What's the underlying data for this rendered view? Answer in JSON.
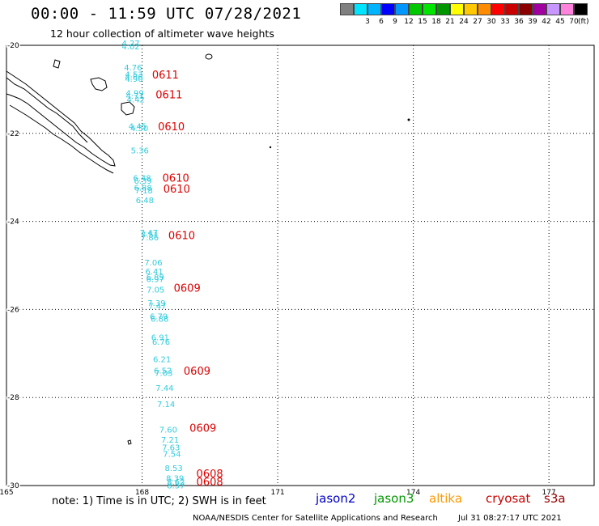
{
  "header": {
    "title": "00:00 - 11:59 UTC 07/28/2021",
    "subtitle": "12 hour collection of altimeter wave heights"
  },
  "legend": {
    "unit": "(ft)",
    "items": [
      {
        "label": "",
        "color": "#808080"
      },
      {
        "label": "3",
        "color": "#00e5ff"
      },
      {
        "label": "6",
        "color": "#00b4ff"
      },
      {
        "label": "9",
        "color": "#0000ff"
      },
      {
        "label": "12",
        "color": "#0096ff"
      },
      {
        "label": "15",
        "color": "#00c800"
      },
      {
        "label": "18",
        "color": "#00e600"
      },
      {
        "label": "21",
        "color": "#009600"
      },
      {
        "label": "24",
        "color": "#ffff00"
      },
      {
        "label": "27",
        "color": "#ffc800"
      },
      {
        "label": "30",
        "color": "#ff8c00"
      },
      {
        "label": "33",
        "color": "#ff0000"
      },
      {
        "label": "36",
        "color": "#c80000"
      },
      {
        "label": "39",
        "color": "#8b0000"
      },
      {
        "label": "42",
        "color": "#a000a0"
      },
      {
        "label": "45",
        "color": "#c896ff"
      },
      {
        "label": "70",
        "color": "#ff82dc"
      },
      {
        "label": "",
        "color": "#000000"
      }
    ]
  },
  "map": {
    "lon_range": [
      165,
      178
    ],
    "lat_range": [
      -20,
      -30
    ],
    "lon_ticks": [
      {
        "v": 165,
        "label": "165"
      },
      {
        "v": 168,
        "label": "168"
      },
      {
        "v": 171,
        "label": "171"
      },
      {
        "v": 174,
        "label": "174"
      },
      {
        "v": 177,
        "label": "177"
      }
    ],
    "lat_ticks": [
      {
        "v": -20,
        "label": "-20"
      },
      {
        "v": -22,
        "label": "-22"
      },
      {
        "v": -24,
        "label": "-24"
      },
      {
        "v": -26,
        "label": "-26"
      },
      {
        "v": -28,
        "label": "-28"
      },
      {
        "v": -30,
        "label": "-30"
      }
    ],
    "wave_color": "#33ccdd",
    "time_color": "#dd0000",
    "wave_labels": [
      {
        "text": "4.27",
        "lon": 167.55,
        "lat": -20.02
      },
      {
        "text": "4.02",
        "lon": 167.55,
        "lat": -20.09
      },
      {
        "text": "4.76",
        "lon": 167.6,
        "lat": -20.57
      },
      {
        "text": "4.53",
        "lon": 167.62,
        "lat": -20.73
      },
      {
        "text": "4.86",
        "lon": 167.62,
        "lat": -20.78
      },
      {
        "text": "4.90",
        "lon": 167.62,
        "lat": -20.83
      },
      {
        "text": "4.99",
        "lon": 167.64,
        "lat": -21.15
      },
      {
        "text": "4.71",
        "lon": 167.64,
        "lat": -21.21
      },
      {
        "text": "4.42",
        "lon": 167.66,
        "lat": -21.3
      },
      {
        "text": "4.45",
        "lon": 167.7,
        "lat": -21.9
      },
      {
        "text": "4.50",
        "lon": 167.74,
        "lat": -21.95
      },
      {
        "text": "5.36",
        "lon": 167.75,
        "lat": -22.45
      },
      {
        "text": "6.48",
        "lon": 167.8,
        "lat": -23.08
      },
      {
        "text": "6.39",
        "lon": 167.82,
        "lat": -23.14
      },
      {
        "text": "6.88",
        "lon": 167.82,
        "lat": -23.3
      },
      {
        "text": "7.18",
        "lon": 167.84,
        "lat": -23.36
      },
      {
        "text": "6.48",
        "lon": 167.86,
        "lat": -23.58
      },
      {
        "text": "7.47",
        "lon": 167.95,
        "lat": -24.32
      },
      {
        "text": "7.51",
        "lon": 167.97,
        "lat": -24.37
      },
      {
        "text": "7.86",
        "lon": 167.97,
        "lat": -24.43
      },
      {
        "text": "7.06",
        "lon": 168.05,
        "lat": -25.0
      },
      {
        "text": "6.41",
        "lon": 168.07,
        "lat": -25.2
      },
      {
        "text": "6.89",
        "lon": 168.09,
        "lat": -25.33
      },
      {
        "text": "6.97",
        "lon": 168.09,
        "lat": -25.38
      },
      {
        "text": "7.05",
        "lon": 168.1,
        "lat": -25.62
      },
      {
        "text": "7.39",
        "lon": 168.12,
        "lat": -25.92
      },
      {
        "text": "7.47",
        "lon": 168.14,
        "lat": -25.98
      },
      {
        "text": "6.79",
        "lon": 168.17,
        "lat": -26.22
      },
      {
        "text": "6.88",
        "lon": 168.19,
        "lat": -26.28
      },
      {
        "text": "6.91",
        "lon": 168.2,
        "lat": -26.7
      },
      {
        "text": "6.76",
        "lon": 168.22,
        "lat": -26.8
      },
      {
        "text": "6.21",
        "lon": 168.24,
        "lat": -27.2
      },
      {
        "text": "6.52",
        "lon": 168.26,
        "lat": -27.45
      },
      {
        "text": "7.03",
        "lon": 168.28,
        "lat": -27.51
      },
      {
        "text": "7.44",
        "lon": 168.3,
        "lat": -27.85
      },
      {
        "text": "7.14",
        "lon": 168.33,
        "lat": -28.22
      },
      {
        "text": "7.60",
        "lon": 168.38,
        "lat": -28.8
      },
      {
        "text": "7.21",
        "lon": 168.42,
        "lat": -29.03
      },
      {
        "text": "7.63",
        "lon": 168.44,
        "lat": -29.2
      },
      {
        "text": "7.54",
        "lon": 168.46,
        "lat": -29.35
      },
      {
        "text": "8.53",
        "lon": 168.5,
        "lat": -29.67
      },
      {
        "text": "8.39",
        "lon": 168.53,
        "lat": -29.9
      },
      {
        "text": "8.57",
        "lon": 168.55,
        "lat": -30.06
      },
      {
        "text": "8.62",
        "lon": 168.55,
        "lat": -29.98
      }
    ],
    "time_labels": [
      {
        "text": "0611",
        "lon": 168.22,
        "lat": -20.75
      },
      {
        "text": "0611",
        "lon": 168.3,
        "lat": -21.2
      },
      {
        "text": "0610",
        "lon": 168.35,
        "lat": -21.93
      },
      {
        "text": "0610",
        "lon": 168.45,
        "lat": -23.1
      },
      {
        "text": "0610",
        "lon": 168.47,
        "lat": -23.35
      },
      {
        "text": "0610",
        "lon": 168.58,
        "lat": -24.4
      },
      {
        "text": "0609",
        "lon": 168.7,
        "lat": -25.6
      },
      {
        "text": "0609",
        "lon": 168.92,
        "lat": -27.48
      },
      {
        "text": "0609",
        "lon": 169.05,
        "lat": -28.78
      },
      {
        "text": "0608",
        "lon": 169.2,
        "lat": -29.82
      },
      {
        "text": "0608",
        "lon": 169.2,
        "lat": -30.0
      }
    ]
  },
  "footer": {
    "note": "note: 1) Time is in UTC; 2) SWH is in feet",
    "satellites": [
      {
        "name": "jason2",
        "color": "#0000cc"
      },
      {
        "name": "jason3",
        "color": "#009900"
      },
      {
        "name": "altika",
        "color": "#ff9900"
      },
      {
        "name": "cryosat",
        "color": "#cc0000"
      },
      {
        "name": "s3a",
        "color": "#990000"
      }
    ],
    "credit": "NOAA/NESDIS Center for Satellite Applications and Research",
    "timestamp": "Jul 31 08:27:17 UTC 2021"
  }
}
